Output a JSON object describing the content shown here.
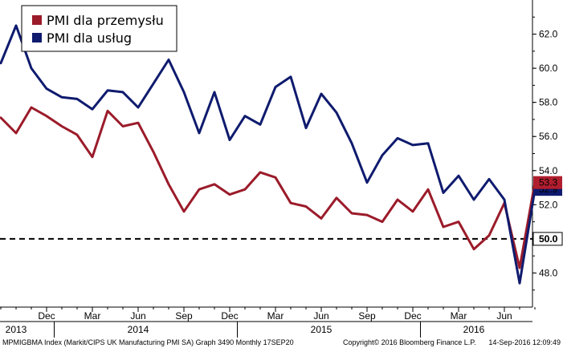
{
  "chart_data": {
    "type": "line",
    "title": "",
    "xlabel": "",
    "ylabel": "",
    "ylim": [
      46,
      64
    ],
    "y_ticks": [
      "48.0",
      "50.0",
      "52.0",
      "54.0",
      "56.0",
      "58.0",
      "60.0",
      "62.0"
    ],
    "x_month_ticks": [
      {
        "label": "Dec",
        "date": "2013-12"
      },
      {
        "label": "Mar",
        "date": "2014-03"
      },
      {
        "label": "Jun",
        "date": "2014-06"
      },
      {
        "label": "Sep",
        "date": "2014-09"
      },
      {
        "label": "Dec",
        "date": "2014-12"
      },
      {
        "label": "Mar",
        "date": "2015-03"
      },
      {
        "label": "Jun",
        "date": "2015-06"
      },
      {
        "label": "Sep",
        "date": "2015-09"
      },
      {
        "label": "Dec",
        "date": "2015-12"
      },
      {
        "label": "Mar",
        "date": "2016-03"
      },
      {
        "label": "Jun",
        "date": "2016-06"
      }
    ],
    "x_year_labels": [
      {
        "label": "2013",
        "date": "2013-10"
      },
      {
        "label": "2014",
        "date": "2014-06"
      },
      {
        "label": "2015",
        "date": "2015-06"
      },
      {
        "label": "2016",
        "date": "2016-04"
      }
    ],
    "x": [
      "2013-09",
      "2013-10",
      "2013-11",
      "2013-12",
      "2014-01",
      "2014-02",
      "2014-03",
      "2014-04",
      "2014-05",
      "2014-06",
      "2014-07",
      "2014-08",
      "2014-09",
      "2014-10",
      "2014-11",
      "2014-12",
      "2015-01",
      "2015-02",
      "2015-03",
      "2015-04",
      "2015-05",
      "2015-06",
      "2015-07",
      "2015-08",
      "2015-09",
      "2015-10",
      "2015-11",
      "2015-12",
      "2016-01",
      "2016-02",
      "2016-03",
      "2016-04",
      "2016-05",
      "2016-06",
      "2016-07",
      "2016-08"
    ],
    "series": [
      {
        "name": "PMI dla przemysłu",
        "color": "#9b1b2a",
        "values": [
          57.1,
          56.2,
          57.7,
          57.2,
          56.6,
          56.1,
          54.8,
          57.5,
          56.6,
          56.8,
          55.1,
          53.2,
          51.6,
          52.9,
          53.2,
          52.6,
          52.9,
          53.9,
          53.6,
          52.1,
          51.9,
          51.2,
          52.4,
          51.5,
          51.4,
          51.0,
          52.3,
          51.6,
          52.9,
          50.7,
          51.0,
          49.4,
          50.2,
          52.1,
          48.3,
          53.3
        ]
      },
      {
        "name": "PMI dla usług",
        "color": "#0f1b6e",
        "values": [
          60.3,
          62.5,
          60.0,
          58.8,
          58.3,
          58.2,
          57.6,
          58.7,
          58.6,
          57.7,
          59.1,
          60.5,
          58.6,
          56.2,
          58.6,
          55.8,
          57.2,
          56.7,
          58.9,
          59.5,
          56.5,
          58.5,
          57.4,
          55.6,
          53.3,
          54.9,
          55.9,
          55.5,
          55.6,
          52.7,
          53.7,
          52.3,
          53.5,
          52.3,
          47.4,
          52.9
        ]
      }
    ],
    "reference_line": {
      "value": 50.0,
      "label": "50.0",
      "style": "dashed"
    },
    "last_value_labels": [
      {
        "series": "PMI dla przemysłu",
        "label": "53.3",
        "bg": "#b01e2e",
        "color": "#ffffff"
      },
      {
        "series": "PMI dla usług",
        "label": "52.9",
        "bg": "#0f1b6e",
        "color": "#ffffff"
      }
    ],
    "legend": {
      "placement": "top-left"
    },
    "grid": false
  },
  "footer": {
    "left": "MPMIGBMA Index (Markit/CIPS UK Manufacturing PMI SA) Graph 3490  Monthly 17SEP20",
    "center": "Copyright© 2016 Bloomberg Finance L.P.",
    "right": "14-Sep-2016 12:09:49"
  }
}
